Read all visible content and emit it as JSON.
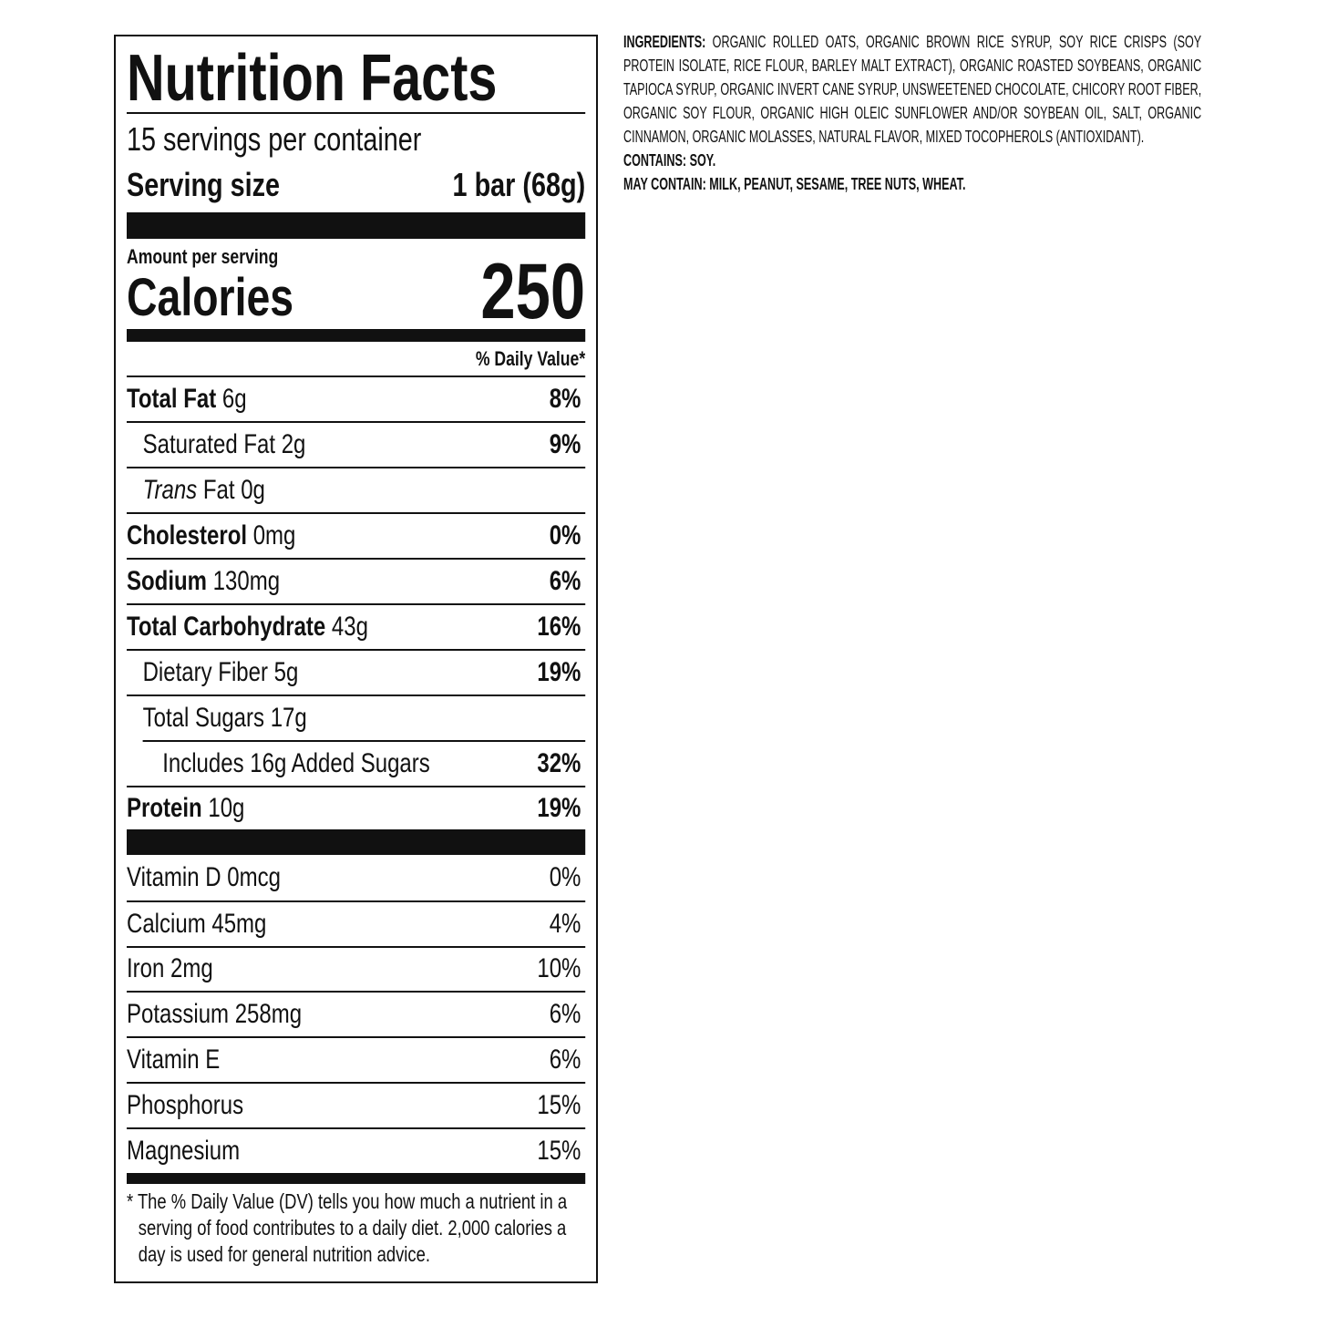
{
  "label": {
    "title": "Nutrition Facts",
    "servings": "15 servings per container",
    "serving_size_label": "Serving size",
    "serving_size_value": "1 bar (68g)",
    "amount_per_serving": "Amount per serving",
    "calories_label": "Calories",
    "calories_value": "250",
    "dv_header": "% Daily Value*",
    "nutrients": [
      {
        "name": "Total Fat",
        "amount": "6g",
        "dv": "8%",
        "bold": true,
        "indent": 0
      },
      {
        "name": "Saturated Fat",
        "amount": "2g",
        "dv": "9%",
        "bold": false,
        "indent": 1
      },
      {
        "name_italic": "Trans",
        "name": "Fat",
        "amount": "0g",
        "bold": false,
        "indent": 1
      },
      {
        "name": "Cholesterol",
        "amount": "0mg",
        "dv": "0%",
        "bold": true,
        "indent": 0
      },
      {
        "name": "Sodium",
        "amount": "130mg",
        "dv": "6%",
        "bold": true,
        "indent": 0
      },
      {
        "name": "Total Carbohydrate",
        "amount": "43g",
        "dv": "16%",
        "bold": true,
        "indent": 0
      },
      {
        "name": "Dietary Fiber",
        "amount": "5g",
        "dv": "19%",
        "bold": false,
        "indent": 1
      },
      {
        "name": "Total Sugars",
        "amount": "17g",
        "bold": false,
        "indent": 1
      },
      {
        "name": "Includes 16g Added Sugars",
        "dv": "32%",
        "bold": false,
        "indent": 2
      },
      {
        "name": "Protein",
        "amount": "10g",
        "dv": "19%",
        "bold": true,
        "indent": 0
      }
    ],
    "vitamins": [
      {
        "name": "Vitamin D 0mcg",
        "dv": "0%"
      },
      {
        "name": "Calcium 45mg",
        "dv": "4%"
      },
      {
        "name": "Iron 2mg",
        "dv": "10%"
      },
      {
        "name": "Potassium 258mg",
        "dv": "6%"
      },
      {
        "name": "Vitamin E",
        "dv": "6%"
      },
      {
        "name": "Phosphorus",
        "dv": "15%"
      },
      {
        "name": "Magnesium",
        "dv": "15%"
      }
    ],
    "footnote": "* The % Daily Value (DV) tells you how much a nutrient in a serving of food contributes to a daily diet. 2,000 calories a day is used for general nutrition advice."
  },
  "ingredients": {
    "label": "INGREDIENTS:",
    "text": "ORGANIC ROLLED OATS, ORGANIC BROWN RICE SYRUP, SOY RICE CRISPS (SOY PROTEIN ISOLATE, RICE FLOUR, BARLEY MALT EXTRACT), ORGANIC ROASTED SOYBEANS, ORGANIC TAPIOCA SYRUP, ORGANIC INVERT CANE SYRUP, UNSWEETENED CHOCOLATE, CHICORY ROOT FIBER, ORGANIC SOY FLOUR, ORGANIC HIGH OLEIC SUNFLOWER AND/OR SOYBEAN OIL, SALT, ORGANIC CINNAMON, ORGANIC MOLASSES, NATURAL FLAVOR, MIXED TOCOPHEROLS (ANTIOXIDANT).",
    "contains_label": "CONTAINS:",
    "contains": "SOY.",
    "may_contain_label": "MAY CONTAIN:",
    "may_contain": "MILK, PEANUT, SESAME, TREE NUTS, WHEAT."
  }
}
